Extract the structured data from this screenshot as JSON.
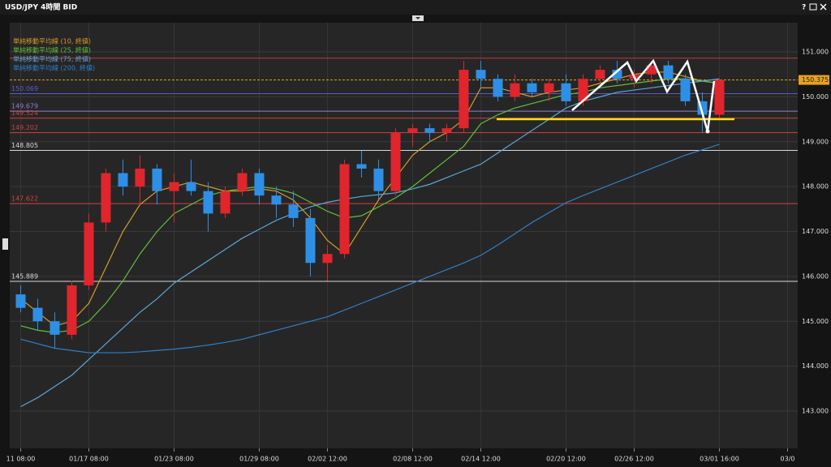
{
  "help_button": "?",
  "chart_data": {
    "type": "candlestick",
    "title": "USD/JPY 4時間 BID",
    "categories": [
      "11 08:00",
      null,
      null,
      null,
      "01/17 08:00",
      null,
      null,
      null,
      null,
      "01/23 08:00",
      null,
      null,
      null,
      null,
      "01/29 08:00",
      null,
      null,
      null,
      "02/02 12:00",
      null,
      null,
      null,
      null,
      "02/08 12:00",
      null,
      null,
      null,
      "02/14 12:00",
      null,
      null,
      null,
      null,
      "02/20 12:00",
      null,
      null,
      null,
      "02/26 12:00",
      null,
      null,
      null,
      null,
      "03/01 16:00",
      null,
      null,
      null,
      "03/0"
    ],
    "open": [
      145.6,
      145.3,
      145.0,
      144.7,
      145.8,
      147.2,
      148.3,
      148.0,
      148.4,
      147.9,
      148.1,
      147.9,
      147.4,
      147.9,
      148.3,
      147.8,
      147.6,
      147.3,
      146.3,
      146.5,
      148.5,
      148.4,
      147.9,
      149.2,
      149.3,
      149.2,
      149.3,
      150.6,
      150.4,
      150.0,
      150.3,
      150.1,
      150.3,
      149.9,
      150.4,
      150.6,
      150.4,
      150.5,
      150.7,
      150.4,
      149.9,
      149.6,
      null,
      null,
      null,
      null
    ],
    "high": [
      145.8,
      145.5,
      145.2,
      145.9,
      147.4,
      148.4,
      148.6,
      148.7,
      148.5,
      148.3,
      148.6,
      148.1,
      148.0,
      148.4,
      148.4,
      148.0,
      147.9,
      147.5,
      146.7,
      148.6,
      148.8,
      148.6,
      149.3,
      149.4,
      149.4,
      149.4,
      150.8,
      150.8,
      150.5,
      150.5,
      150.4,
      150.4,
      150.5,
      150.5,
      150.7,
      150.8,
      150.6,
      150.8,
      150.8,
      150.5,
      150.1,
      150.4,
      null,
      null,
      null,
      null
    ],
    "low": [
      145.2,
      144.8,
      144.4,
      144.6,
      145.7,
      147.0,
      147.8,
      147.6,
      147.6,
      147.2,
      147.8,
      147.0,
      147.3,
      147.8,
      147.6,
      147.3,
      147.1,
      146.0,
      145.9,
      146.4,
      148.2,
      147.7,
      147.8,
      148.9,
      149.0,
      149.0,
      149.2,
      150.2,
      149.9,
      149.9,
      150.0,
      149.9,
      149.8,
      149.8,
      150.3,
      150.3,
      150.2,
      150.3,
      150.3,
      149.8,
      149.2,
      149.5,
      null,
      null,
      null,
      null
    ],
    "close": [
      145.3,
      145.0,
      144.7,
      145.8,
      147.2,
      148.3,
      148.0,
      148.4,
      147.9,
      148.1,
      147.9,
      147.4,
      147.9,
      148.3,
      147.8,
      147.6,
      147.3,
      146.3,
      146.5,
      148.5,
      148.4,
      147.9,
      149.2,
      149.3,
      149.2,
      149.3,
      150.6,
      150.4,
      150.0,
      150.3,
      150.1,
      150.3,
      149.9,
      150.4,
      150.6,
      150.4,
      150.5,
      150.7,
      150.4,
      149.9,
      149.6,
      150.375,
      null,
      null,
      null,
      null
    ],
    "up_color": "#e0252d",
    "down_color": "#2e8fe6",
    "series": [
      {
        "name": "単純移動平均線 (10, 終値)",
        "color": "#d89a2a",
        "values": [
          145.5,
          145.2,
          144.9,
          145.0,
          145.4,
          146.2,
          147.0,
          147.6,
          147.9,
          148.0,
          148.1,
          148.0,
          147.9,
          147.9,
          147.95,
          147.9,
          147.7,
          147.3,
          146.8,
          146.5,
          147.1,
          147.7,
          148.2,
          148.7,
          149.0,
          149.2,
          149.5,
          150.2,
          150.2,
          150.1,
          150.0,
          150.1,
          150.15,
          150.2,
          150.3,
          150.4,
          150.5,
          150.55,
          150.55,
          150.45,
          150.35,
          150.3,
          null,
          null,
          null,
          null
        ]
      },
      {
        "name": "単純移動平均線 (25, 終値)",
        "color": "#5fbf3a",
        "values": [
          144.9,
          144.8,
          144.75,
          144.8,
          145.0,
          145.4,
          145.9,
          146.5,
          147.0,
          147.4,
          147.6,
          147.8,
          147.9,
          147.95,
          148.0,
          147.95,
          147.85,
          147.65,
          147.45,
          147.3,
          147.35,
          147.55,
          147.75,
          148.0,
          148.3,
          148.6,
          148.9,
          149.4,
          149.6,
          149.75,
          149.85,
          149.95,
          150.05,
          150.1,
          150.2,
          150.25,
          150.3,
          150.35,
          150.4,
          150.4,
          150.35,
          150.3,
          null,
          null,
          null,
          null
        ]
      },
      {
        "name": "単純移動平均線 (75, 終値)",
        "color": "#5aa6d6",
        "values": [
          143.1,
          143.3,
          143.55,
          143.8,
          144.15,
          144.5,
          144.85,
          145.2,
          145.5,
          145.85,
          146.1,
          146.35,
          146.6,
          146.85,
          147.05,
          147.25,
          147.4,
          147.55,
          147.65,
          147.72,
          147.78,
          147.82,
          147.86,
          147.95,
          148.05,
          148.2,
          148.35,
          148.5,
          148.75,
          149.0,
          149.25,
          149.5,
          149.75,
          149.9,
          150.0,
          150.1,
          150.15,
          150.2,
          150.25,
          150.3,
          150.35,
          150.4,
          null,
          null,
          null,
          null
        ]
      },
      {
        "name": "単純移動平均線 (200, 終値)",
        "color": "#2f7fc8",
        "values": [
          144.6,
          144.5,
          144.4,
          144.35,
          144.3,
          144.3,
          144.3,
          144.32,
          144.35,
          144.38,
          144.42,
          144.47,
          144.53,
          144.6,
          144.7,
          144.8,
          144.9,
          145.0,
          145.1,
          145.25,
          145.4,
          145.55,
          145.7,
          145.85,
          146.0,
          146.15,
          146.3,
          146.47,
          146.7,
          146.95,
          147.2,
          147.42,
          147.64,
          147.8,
          147.95,
          148.1,
          148.25,
          148.4,
          148.55,
          148.7,
          148.82,
          148.94,
          null,
          null,
          null,
          null
        ]
      }
    ],
    "levels": [
      {
        "value": 150.86,
        "color": "#c0393f",
        "label_position": "none"
      },
      {
        "value": 150.375,
        "color": "#e8a020",
        "label_position": "right",
        "dashed": true
      },
      {
        "value": 150.069,
        "color": "#5a5ad0",
        "label_position": "left"
      },
      {
        "value": 149.679,
        "color": "#8f7fd0",
        "label_position": "left"
      },
      {
        "value": 149.524,
        "color": "#d04040",
        "label_position": "left"
      },
      {
        "value": 149.202,
        "color": "#d04040",
        "label_position": "left"
      },
      {
        "value": 148.805,
        "color": "#d8d8d8",
        "label_position": "left"
      },
      {
        "value": 147.622,
        "color": "#d04040",
        "label_position": "left"
      },
      {
        "value": 145.889,
        "color": "#d8d8d8",
        "label_position": "left"
      }
    ],
    "ylim": [
      142.17,
      151.65
    ],
    "yticks": [
      {
        "value": 143,
        "label": "143.000"
      },
      {
        "value": 144,
        "label": "144.000"
      },
      {
        "value": 145,
        "label": "145.000"
      },
      {
        "value": 146,
        "label": "146.000"
      },
      {
        "value": 147,
        "label": "147.000"
      },
      {
        "value": 148,
        "label": "148.000"
      },
      {
        "value": 149,
        "label": "149.000"
      },
      {
        "value": 150,
        "label": "150.000"
      },
      {
        "value": 151,
        "label": "151.000"
      }
    ],
    "grid": true
  }
}
